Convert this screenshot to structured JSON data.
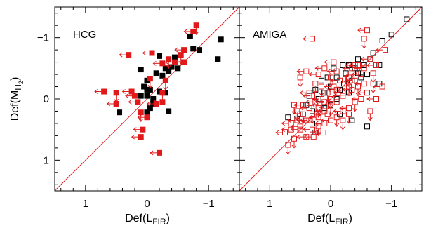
{
  "colors": {
    "upper_limit": "#e0191a",
    "detection": "#000000",
    "equality_line": "#e0191a",
    "frame": "#000000"
  },
  "chart_data": {
    "type": "scatter",
    "xlabel": {
      "main": "Def(L",
      "sub": "FIR",
      "close": ")"
    },
    "ylabel": {
      "main": "Def(M",
      "sub": "H",
      "subsub": "2",
      "close": ")"
    },
    "xlim": [
      1.5,
      -1.5
    ],
    "ylim": [
      1.5,
      -1.5
    ],
    "x_ticks": [
      1,
      0,
      -1
    ],
    "x_tick_labels": [
      "1",
      "0",
      "−1"
    ],
    "y_ticks": [
      -1,
      0,
      1
    ],
    "y_tick_labels": [
      "−1",
      "0",
      "1"
    ],
    "reference_line": "y = x",
    "panels": [
      {
        "label": "HCG",
        "marker": "filled-square",
        "detections": [
          [
            -1.2,
            -0.97
          ],
          [
            -1.15,
            -0.65
          ],
          [
            -0.85,
            -0.8
          ],
          [
            -0.75,
            -0.82
          ],
          [
            -0.7,
            -1.02
          ],
          [
            -0.6,
            -0.6
          ],
          [
            -0.5,
            -0.5
          ],
          [
            -0.45,
            -0.68
          ],
          [
            -0.4,
            -0.52
          ],
          [
            -0.35,
            -0.45
          ],
          [
            -0.3,
            -0.5
          ],
          [
            -0.25,
            -0.38
          ],
          [
            -0.3,
            -0.1
          ],
          [
            -0.2,
            -0.12
          ],
          [
            -0.35,
            0.2
          ],
          [
            -0.1,
            0.08
          ],
          [
            0.0,
            -0.05
          ],
          [
            -0.05,
            -0.15
          ],
          [
            0.05,
            -0.2
          ],
          [
            0.0,
            0.22
          ],
          [
            -0.1,
            0.0
          ],
          [
            -0.05,
            0.15
          ],
          [
            0.1,
            -0.05
          ],
          [
            0.0,
            -0.3
          ],
          [
            -0.15,
            -0.42
          ],
          [
            0.45,
            0.22
          ],
          [
            0.1,
            -0.48
          ],
          [
            -0.2,
            -0.7
          ],
          [
            0.0,
            -0.15
          ]
        ],
        "upper_limits": [
          [
            0.7,
            -0.12
          ],
          [
            -0.08,
            -0.75
          ],
          [
            0.5,
            -0.1
          ],
          [
            0.5,
            0.08
          ],
          [
            0.2,
            -0.05
          ],
          [
            0.1,
            0.22
          ],
          [
            0.07,
            0.5
          ],
          [
            0.0,
            0.3
          ],
          [
            -0.8,
            -1.2
          ],
          [
            -0.75,
            -1.1
          ],
          [
            -0.6,
            -0.8
          ],
          [
            -0.55,
            -0.72
          ],
          [
            -0.45,
            -0.6
          ],
          [
            -0.25,
            -0.58
          ],
          [
            -0.35,
            -0.65
          ],
          [
            0.25,
            -0.12
          ],
          [
            -0.25,
            0.05
          ],
          [
            -0.05,
            -0.33
          ],
          [
            -0.15,
            0.08
          ],
          [
            0.3,
            -0.72
          ],
          [
            -0.25,
            -0.1
          ],
          [
            0.15,
            0.05
          ],
          [
            -0.6,
            -0.6
          ],
          [
            -0.3,
            -0.3
          ],
          [
            0.1,
            0.62
          ],
          [
            -0.2,
            0.88
          ]
        ]
      },
      {
        "label": "AMIGA",
        "marker": "open-square",
        "detections": [
          [
            -1.25,
            -1.3
          ],
          [
            -1.0,
            -1.05
          ],
          [
            -0.85,
            -0.95
          ],
          [
            -0.8,
            -0.55
          ],
          [
            -0.7,
            -0.75
          ],
          [
            -0.65,
            -0.65
          ],
          [
            -0.6,
            -0.4
          ],
          [
            -0.55,
            -0.55
          ],
          [
            -0.5,
            -0.35
          ],
          [
            -0.45,
            -0.65
          ],
          [
            -0.45,
            -0.42
          ],
          [
            -0.4,
            -0.5
          ],
          [
            -0.35,
            -0.3
          ],
          [
            -0.3,
            -0.55
          ],
          [
            -0.3,
            -0.1
          ],
          [
            -0.25,
            -0.42
          ],
          [
            -0.22,
            -0.25
          ],
          [
            -0.2,
            -0.55
          ],
          [
            -0.15,
            -0.15
          ],
          [
            -0.1,
            -0.35
          ],
          [
            -0.1,
            0.0
          ],
          [
            -0.05,
            -0.5
          ],
          [
            0.0,
            -0.2
          ],
          [
            0.0,
            0.1
          ],
          [
            0.05,
            -0.35
          ],
          [
            0.1,
            -0.1
          ],
          [
            0.1,
            0.15
          ],
          [
            0.15,
            -0.3
          ],
          [
            0.2,
            0.0
          ],
          [
            0.25,
            -0.15
          ],
          [
            0.3,
            0.2
          ],
          [
            0.35,
            -0.05
          ],
          [
            0.4,
            0.1
          ],
          [
            0.5,
            0.25
          ],
          [
            0.3,
            0.4
          ],
          [
            0.55,
            0.32
          ],
          [
            0.7,
            0.3
          ],
          [
            0.25,
            0.55
          ],
          [
            -0.6,
            0.45
          ],
          [
            -0.8,
            -0.25
          ],
          [
            -0.15,
            0.25
          ],
          [
            -0.35,
            0.35
          ]
        ],
        "upper_limits": [
          [
            0.3,
            -0.98
          ],
          [
            -0.6,
            -1.12
          ],
          [
            -0.55,
            -0.98
          ],
          [
            -0.9,
            -0.8
          ],
          [
            -0.75,
            -0.55
          ],
          [
            -0.7,
            -0.42
          ],
          [
            -0.5,
            -0.4
          ],
          [
            -0.4,
            -0.3
          ],
          [
            -0.3,
            -0.2
          ],
          [
            -0.2,
            -0.05
          ],
          [
            -0.1,
            0.05
          ],
          [
            0.0,
            0.12
          ],
          [
            0.1,
            0.2
          ],
          [
            0.2,
            0.3
          ],
          [
            0.3,
            0.25
          ],
          [
            0.4,
            0.35
          ],
          [
            0.5,
            0.45
          ],
          [
            0.6,
            0.65
          ],
          [
            -0.6,
            -0.1
          ],
          [
            -0.5,
            0.0
          ],
          [
            -0.4,
            0.05
          ],
          [
            -0.3,
            0.15
          ],
          [
            -0.2,
            0.2
          ],
          [
            -0.1,
            0.3
          ],
          [
            0.0,
            0.35
          ],
          [
            0.1,
            0.4
          ],
          [
            0.2,
            0.45
          ],
          [
            0.3,
            0.5
          ],
          [
            0.15,
            0.0
          ],
          [
            0.05,
            -0.1
          ],
          [
            -0.05,
            -0.2
          ],
          [
            -0.15,
            -0.3
          ],
          [
            -0.25,
            -0.4
          ],
          [
            -0.35,
            -0.5
          ],
          [
            -0.45,
            -0.55
          ],
          [
            0.25,
            -0.25
          ],
          [
            0.35,
            -0.1
          ],
          [
            0.45,
            0.1
          ],
          [
            0.55,
            0.2
          ],
          [
            0.65,
            0.4
          ],
          [
            0.75,
            0.55
          ],
          [
            0.7,
            0.75
          ],
          [
            0.2,
            -0.4
          ],
          [
            0.1,
            -0.5
          ],
          [
            0.0,
            -0.35
          ],
          [
            -0.1,
            -0.45
          ],
          [
            -0.05,
            -0.6
          ],
          [
            0.15,
            -0.2
          ],
          [
            0.25,
            0.05
          ],
          [
            0.35,
            0.15
          ],
          [
            0.45,
            0.25
          ],
          [
            0.55,
            0.35
          ],
          [
            0.65,
            0.5
          ],
          [
            -0.65,
            0.2
          ],
          [
            -0.75,
            0.0
          ],
          [
            -0.55,
            -0.25
          ],
          [
            0.5,
            -0.35
          ],
          [
            0.4,
            -0.45
          ],
          [
            -0.85,
            -0.2
          ],
          [
            -0.3,
            0.25
          ],
          [
            0.05,
            0.25
          ],
          [
            0.12,
            0.55
          ],
          [
            -0.2,
            0.35
          ],
          [
            0.28,
            0.62
          ],
          [
            0.4,
            0.62
          ],
          [
            0.6,
            0.1
          ],
          [
            0.3,
            -0.05
          ],
          [
            0.15,
            0.1
          ],
          [
            0.0,
            0.0
          ],
          [
            -0.2,
            -0.1
          ],
          [
            -0.35,
            -0.15
          ],
          [
            -0.45,
            -0.2
          ],
          [
            -0.55,
            -0.5
          ],
          [
            -0.65,
            -0.65
          ],
          [
            -0.7,
            -0.25
          ],
          [
            0.5,
            0.5
          ],
          [
            0.35,
            0.35
          ],
          [
            0.2,
            0.15
          ],
          [
            0.1,
            0.05
          ],
          [
            -0.1,
            -0.15
          ],
          [
            -0.3,
            -0.35
          ],
          [
            -0.4,
            -0.55
          ]
        ]
      }
    ]
  }
}
